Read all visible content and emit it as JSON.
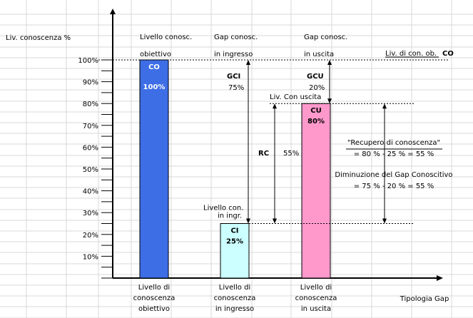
{
  "chart_data": {
    "type": "bar",
    "categories": [
      "Livello di conoscenza obiettivo",
      "Livello di conoscenza in ingresso",
      "Livello di conoscenza in uscita"
    ],
    "category_lines": [
      [
        "Livello di",
        "conoscenza",
        "obiettivo"
      ],
      [
        "Livello di",
        "conoscenza",
        "in ingresso"
      ],
      [
        "Livello di",
        "conoscenza",
        "in uscita"
      ]
    ],
    "values": [
      100,
      25,
      80
    ],
    "bar_labels": [
      "CO",
      "CI",
      "CU"
    ],
    "bar_value_labels": [
      "100%",
      "25%",
      "80%"
    ],
    "bar_colors": [
      "#3d6ee6",
      "#ccffff",
      "#ff99cc"
    ],
    "bar_label_colors": [
      "#ffffff",
      "#000000",
      "#000000"
    ],
    "ylabel": "Liv. conoscenza %",
    "xlabel": "Tipologia Gap",
    "ylim": [
      0,
      110
    ],
    "yticks": [
      "100%",
      "90%",
      "80%",
      "70%",
      "60%",
      "50%",
      "40%",
      "30%",
      "20%",
      "10%"
    ],
    "ytick_values": [
      100,
      90,
      80,
      70,
      60,
      50,
      40,
      30,
      20,
      10
    ],
    "column_headers": [
      [
        "Livello conosc.",
        "obiettivo"
      ],
      [
        "Gap conosc.",
        "in ingresso"
      ],
      [
        "Gap conosc.",
        "in uscita"
      ]
    ],
    "reference_lines": [
      {
        "label": "Liv. di con. ob.",
        "code": "CO",
        "y": 100
      },
      {
        "label": "Liv. Con uscita",
        "y": 80
      },
      {
        "label_lines": [
          "Livello con.",
          "in ingr."
        ],
        "y": 25
      }
    ],
    "gaps": [
      {
        "code": "GCI",
        "value_label": "75%",
        "from": 25,
        "to": 100
      },
      {
        "code": "GCU",
        "value_label": "20%",
        "from": 80,
        "to": 100
      },
      {
        "code": "RC",
        "value_label": "55%",
        "from": 25,
        "to": 80
      }
    ],
    "annotations": [
      [
        "\"Recupero di conoscenza\"",
        "= 80 % - 25 % = 55 %"
      ],
      [
        "Diminuzione del Gap Conoscitivo",
        "= 75 % - 20 % = 55 %"
      ]
    ],
    "grid": true
  }
}
